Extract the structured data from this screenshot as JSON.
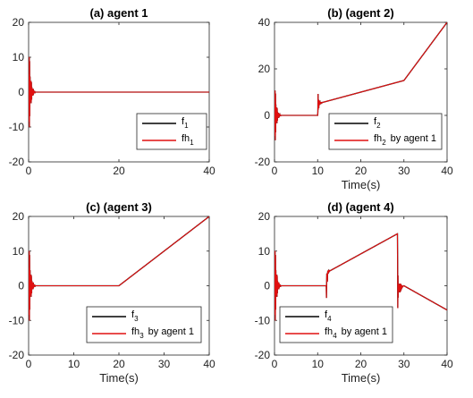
{
  "chart_data": [
    {
      "type": "line",
      "title": "(a) agent 1",
      "xlabel": "",
      "ylabel": "",
      "xlim": [
        0,
        40
      ],
      "ylim": [
        -20,
        20
      ],
      "xticks": [
        "0",
        "20",
        "40"
      ],
      "yticks": [
        "20",
        "10",
        "0",
        "-10",
        "-20"
      ],
      "legend_position": "lower-right",
      "series": [
        {
          "name": "f",
          "sub": "1",
          "suffix": "",
          "color": "#000000",
          "x": [
            0,
            40
          ],
          "y": [
            0,
            0
          ]
        },
        {
          "name": "fh",
          "sub": "1",
          "suffix": "",
          "color": "#e01010",
          "x": [
            0,
            40
          ],
          "y": [
            0,
            0
          ]
        }
      ],
      "transients": [
        {
          "start": 0,
          "amp": 17,
          "dur": 1.4
        }
      ]
    },
    {
      "type": "line",
      "title": "(b) (agent 2)",
      "xlabel": "Time(s)",
      "ylabel": "",
      "xlim": [
        0,
        40
      ],
      "ylim": [
        -20,
        40
      ],
      "xticks": [
        "0",
        "10",
        "20",
        "30",
        "40"
      ],
      "yticks": [
        "40",
        "20",
        "0",
        "-20"
      ],
      "legend_position": "lower-right",
      "series": [
        {
          "name": "f",
          "sub": "2",
          "suffix": "",
          "color": "#000000",
          "x": [
            0,
            10,
            10,
            30,
            40
          ],
          "y": [
            0,
            0,
            5,
            15,
            40
          ]
        },
        {
          "name": "fh",
          "sub": "2",
          "suffix": "by agent 1",
          "color": "#e01010",
          "x": [
            0,
            10,
            10,
            30,
            40
          ],
          "y": [
            0,
            0,
            5,
            15,
            40
          ]
        }
      ],
      "transients": [
        {
          "start": 0,
          "amp": 18,
          "dur": 1.4
        },
        {
          "start": 10,
          "amp": 6,
          "dur": 1.0
        }
      ]
    },
    {
      "type": "line",
      "title": "(c) (agent 3)",
      "xlabel": "Time(s)",
      "ylabel": "",
      "xlim": [
        0,
        40
      ],
      "ylim": [
        -20,
        20
      ],
      "xticks": [
        "0",
        "10",
        "20",
        "30",
        "40"
      ],
      "yticks": [
        "20",
        "10",
        "0",
        "-10",
        "-20"
      ],
      "legend_position": "lower-right",
      "series": [
        {
          "name": "f",
          "sub": "3",
          "suffix": "",
          "color": "#000000",
          "x": [
            0,
            20,
            40
          ],
          "y": [
            0,
            0,
            20
          ]
        },
        {
          "name": "fh",
          "sub": "3",
          "suffix": "by agent 1",
          "color": "#e01010",
          "x": [
            0,
            20,
            40
          ],
          "y": [
            0,
            0,
            20
          ]
        }
      ],
      "transients": [
        {
          "start": 0,
          "amp": 17,
          "dur": 1.4
        }
      ]
    },
    {
      "type": "line",
      "title": "(d) (agent 4)",
      "xlabel": "Time(s)",
      "ylabel": "",
      "xlim": [
        0,
        40
      ],
      "ylim": [
        -20,
        20
      ],
      "xticks": [
        "0",
        "10",
        "20",
        "30",
        "40"
      ],
      "yticks": [
        "20",
        "10",
        "0",
        "-10",
        "-20"
      ],
      "legend_position": "lower-left",
      "series": [
        {
          "name": "f",
          "sub": "4",
          "suffix": "",
          "color": "#000000",
          "x": [
            0,
            12,
            12.4,
            28.5,
            28.5,
            30,
            40
          ],
          "y": [
            0,
            0,
            4,
            15,
            -1,
            0,
            -7
          ]
        },
        {
          "name": "fh",
          "sub": "4",
          "suffix": "by agent 1",
          "color": "#e01010",
          "x": [
            0,
            12,
            12.4,
            28.5,
            28.5,
            30,
            40
          ],
          "y": [
            0,
            0,
            4,
            15,
            -1,
            0,
            -7
          ]
        }
      ],
      "transients": [
        {
          "start": 0,
          "amp": 17,
          "dur": 1.4
        },
        {
          "start": 12,
          "amp": 5,
          "dur": 0.8
        },
        {
          "start": 28.5,
          "amp": 13,
          "dur": 1.2
        }
      ]
    }
  ]
}
